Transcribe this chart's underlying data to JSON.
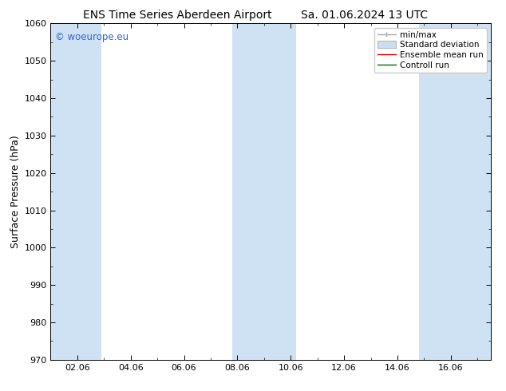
{
  "title_left": "ENS Time Series Aberdeen Airport",
  "title_right": "Sa. 01.06.2024 13 UTC",
  "ylabel": "Surface Pressure (hPa)",
  "ylim": [
    970,
    1060
  ],
  "yticks": [
    970,
    980,
    990,
    1000,
    1010,
    1020,
    1030,
    1040,
    1050,
    1060
  ],
  "xtick_labels": [
    "02.06",
    "04.06",
    "06.06",
    "08.06",
    "10.06",
    "12.06",
    "14.06",
    "16.06"
  ],
  "xtick_positions": [
    2,
    4,
    6,
    8,
    10,
    12,
    14,
    16
  ],
  "xlim": [
    1.0,
    17.5
  ],
  "watermark": "© woeurope.eu",
  "watermark_color": "#3366cc",
  "bg_color": "#ffffff",
  "plot_bg_color": "#ffffff",
  "band_color": "#cfe2f3",
  "bands": [
    {
      "x_start": 1.0,
      "x_end": 2.9
    },
    {
      "x_start": 7.8,
      "x_end": 9.0
    },
    {
      "x_start": 9.0,
      "x_end": 10.2
    },
    {
      "x_start": 14.8,
      "x_end": 17.5
    }
  ],
  "legend_labels": [
    "min/max",
    "Standard deviation",
    "Ensemble mean run",
    "Controll run"
  ],
  "title_fontsize": 10,
  "axis_label_fontsize": 9,
  "tick_fontsize": 8,
  "legend_fontsize": 7.5
}
